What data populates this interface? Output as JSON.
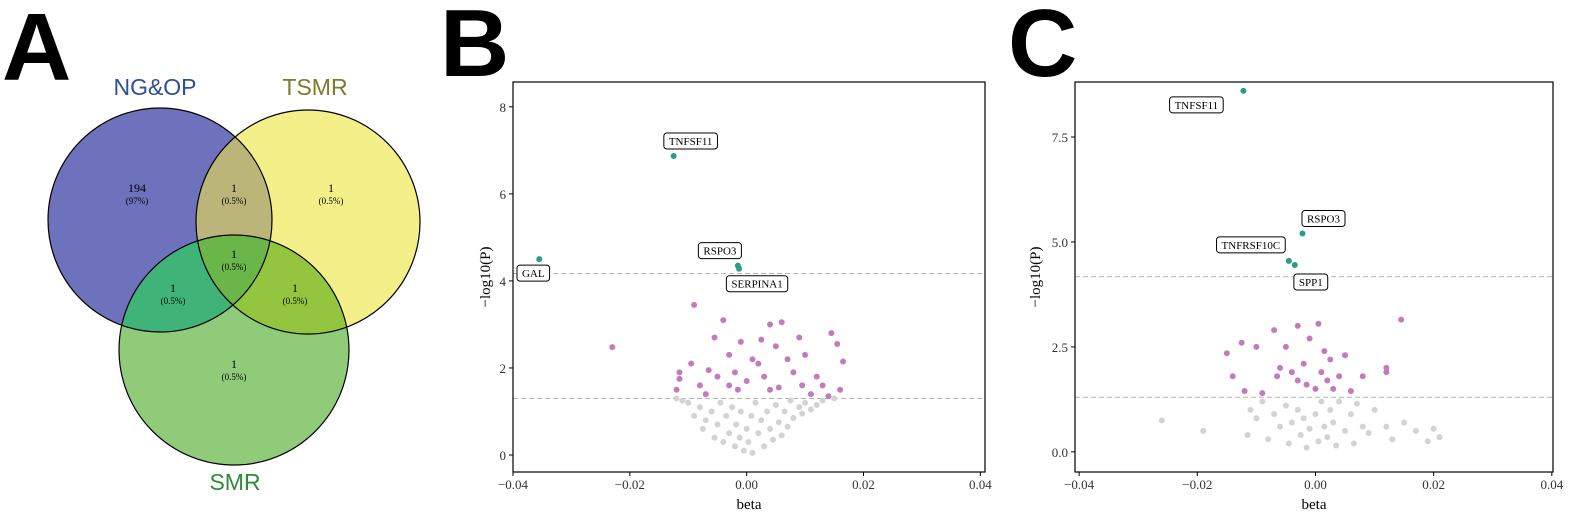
{
  "chart_data": [
    {
      "type": "venn",
      "panel_label": "A",
      "sets": [
        {
          "name": "NG&OP",
          "color": "#6e72bd",
          "label_color": "#2e4f9a"
        },
        {
          "name": "TSMR",
          "color": "#f3f08a",
          "label_color": "#7d7a2a"
        },
        {
          "name": "SMR",
          "color": "#8fcb79",
          "label_color": "#2e8b3a"
        }
      ],
      "regions": [
        {
          "sets": [
            "NG&OP"
          ],
          "count": 194,
          "share": "(97%)"
        },
        {
          "sets": [
            "NG&OP",
            "TSMR"
          ],
          "count": 1,
          "share": "(0.5%)",
          "color": "#bcb57a"
        },
        {
          "sets": [
            "TSMR"
          ],
          "count": 1,
          "share": "(0.5%)"
        },
        {
          "sets": [
            "NG&OP",
            "TSMR",
            "SMR"
          ],
          "count": 1,
          "share": "(0.5%)",
          "color": "#6ab649"
        },
        {
          "sets": [
            "NG&OP",
            "SMR"
          ],
          "count": 1,
          "share": "(0.5%)",
          "color": "#3fb378"
        },
        {
          "sets": [
            "TSMR",
            "SMR"
          ],
          "count": 1,
          "share": "(0.5%)",
          "color": "#93c53e"
        },
        {
          "sets": [
            "SMR"
          ],
          "count": 1,
          "share": "(0.5%)"
        }
      ]
    },
    {
      "type": "scatter",
      "panel_label": "B",
      "x_label": "beta",
      "y_label": "−log10(P)",
      "xlim": [
        -0.04,
        0.0408
      ],
      "ylim": [
        -0.39,
        8.57
      ],
      "xticks": [
        {
          "value": -0.04,
          "label": "−0.04"
        },
        {
          "value": -0.02,
          "label": "−0.02"
        },
        {
          "value": 0,
          "label": "0.00"
        },
        {
          "value": 0.02,
          "label": "0.02"
        },
        {
          "value": 0.04,
          "label": "0.04"
        }
      ],
      "yticks": [
        0,
        2,
        4,
        6,
        8
      ],
      "thresholds": [
        4.17,
        1.3
      ],
      "series": [
        {
          "color": "#d3d3d3",
          "x": [
            -0.01,
            -0.009,
            -0.008,
            -0.0075,
            -0.007,
            -0.006,
            -0.0055,
            -0.005,
            -0.0045,
            -0.004,
            -0.0035,
            -0.003,
            -0.0025,
            -0.002,
            -0.0018,
            -0.0012,
            -0.001,
            -0.0005,
            0,
            0.0003,
            0.0008,
            0.001,
            0.0015,
            0.002,
            0.0025,
            0.003,
            0.0035,
            0.004,
            0.0045,
            0.005,
            0.0055,
            0.006,
            0.0065,
            0.007,
            0.0075,
            0.008,
            0.009,
            0.0095,
            0.01,
            0.011,
            0.012,
            0.013,
            0.015,
            -0.011,
            -0.012
          ],
          "values": [
            1.2,
            0.9,
            1.1,
            0.6,
            0.8,
            1.0,
            0.4,
            0.7,
            1.2,
            0.3,
            0.9,
            0.5,
            1.1,
            0.2,
            0.7,
            0.4,
            1.0,
            0.1,
            0.6,
            0.3,
            0.9,
            0.05,
            1.2,
            0.5,
            0.8,
            0.2,
            1.0,
            0.6,
            0.35,
            1.15,
            0.75,
            0.45,
            1.0,
            0.65,
            1.25,
            0.85,
            1.1,
            0.95,
            1.2,
            1.05,
            1.15,
            1.25,
            1.3,
            1.25,
            1.3
          ]
        },
        {
          "color": "#c37bbf",
          "x": [
            -0.023,
            -0.0115,
            -0.0115,
            -0.009,
            -0.0095,
            -0.008,
            -0.007,
            -0.0055,
            -0.005,
            -0.004,
            -0.003,
            -0.003,
            -0.002,
            -0.0015,
            -0.001,
            0,
            0.001,
            0.002,
            0.003,
            0.004,
            0.004,
            0.005,
            0.006,
            0.007,
            0.008,
            0.009,
            0.0095,
            0.01,
            0.011,
            0.012,
            0.013,
            0.014,
            0.0145,
            0.0155,
            0.016,
            0.0165,
            -0.012,
            -0.0065,
            0.0025,
            0.0055
          ],
          "values": [
            2.48,
            1.9,
            1.75,
            3.45,
            2.1,
            1.6,
            1.4,
            2.7,
            1.8,
            3.1,
            2.3,
            1.6,
            1.9,
            1.5,
            2.6,
            1.7,
            2.2,
            2.1,
            1.8,
            3.0,
            1.5,
            2.5,
            3.05,
            2.2,
            1.9,
            2.7,
            1.6,
            2.3,
            1.4,
            1.8,
            1.6,
            1.35,
            2.8,
            2.55,
            1.5,
            2.15,
            1.5,
            1.95,
            2.65,
            1.55
          ]
        },
        {
          "color": "#2a9d8a",
          "x": [
            -0.0355,
            -0.0125,
            -0.0015,
            -0.0013
          ],
          "values": [
            4.5,
            6.87,
            4.35,
            4.28
          ],
          "point_labels": [
            "GAL",
            "TNFSF11",
            "RSPO3",
            "SERPINA1"
          ]
        }
      ]
    },
    {
      "type": "scatter",
      "panel_label": "C",
      "x_label": "beta",
      "y_label": "−log10(P)",
      "xlim": [
        -0.0407,
        0.0402
      ],
      "ylim": [
        -0.48,
        8.81
      ],
      "xticks": [
        {
          "value": -0.04,
          "label": "−0.04"
        },
        {
          "value": -0.02,
          "label": "−0.02"
        },
        {
          "value": 0,
          "label": "0.00"
        },
        {
          "value": 0.02,
          "label": "0.02"
        },
        {
          "value": 0.04,
          "label": "0.04"
        }
      ],
      "yticks": [
        {
          "value": 0,
          "label": "0.0"
        },
        2.5,
        {
          "value": 5,
          "label": "5.0"
        },
        7.5
      ],
      "thresholds": [
        4.17,
        1.3
      ],
      "series": [
        {
          "color": "#d3d3d3",
          "x": [
            -0.026,
            -0.019,
            -0.011,
            -0.0115,
            -0.01,
            -0.009,
            -0.008,
            -0.007,
            -0.006,
            -0.005,
            -0.0045,
            -0.004,
            -0.003,
            -0.0025,
            -0.002,
            -0.0015,
            -0.001,
            0,
            0.0005,
            0.001,
            0.0015,
            0.002,
            0.0025,
            0.003,
            0.0035,
            0.004,
            0.005,
            0.006,
            0.0065,
            0.007,
            0.008,
            0.009,
            0.01,
            0.012,
            0.013,
            0.015,
            0.017,
            0.02,
            0.021,
            0.019
          ],
          "values": [
            0.75,
            0.5,
            1.0,
            0.4,
            0.8,
            1.2,
            0.3,
            0.9,
            0.6,
            1.1,
            0.2,
            0.7,
            1.0,
            0.4,
            0.8,
            0.1,
            0.55,
            0.9,
            0.25,
            1.2,
            0.6,
            0.35,
            1.0,
            0.7,
            0.15,
            1.2,
            0.5,
            0.9,
            0.2,
            1.15,
            0.6,
            0.45,
            1.0,
            0.6,
            0.3,
            0.7,
            0.5,
            0.55,
            0.35,
            0.25
          ]
        },
        {
          "color": "#c37bbf",
          "x": [
            -0.015,
            -0.014,
            -0.0125,
            -0.01,
            -0.009,
            -0.007,
            -0.0065,
            -0.006,
            -0.005,
            -0.004,
            -0.003,
            -0.003,
            -0.002,
            -0.0015,
            -0.001,
            0,
            0.0005,
            0.001,
            0.0015,
            0.002,
            0.0025,
            0.003,
            0.004,
            0.005,
            0.006,
            0.008,
            0.012,
            0.012,
            0.0145,
            -0.012
          ],
          "values": [
            2.35,
            1.8,
            2.6,
            2.5,
            1.4,
            2.9,
            1.8,
            2.0,
            2.5,
            1.9,
            1.7,
            3.0,
            2.1,
            1.6,
            2.7,
            1.5,
            3.05,
            1.9,
            2.4,
            1.7,
            2.2,
            1.5,
            1.8,
            2.3,
            1.45,
            1.8,
            1.9,
            2.0,
            3.15,
            1.45
          ]
        },
        {
          "color": "#2a9d8a",
          "x": [
            -0.0122,
            -0.0022,
            -0.0045,
            -0.0035
          ],
          "values": [
            8.6,
            5.2,
            4.55,
            4.45
          ],
          "point_labels": [
            "TNFSF11",
            "RSPO3",
            "TNFRSF10C",
            "SPP1"
          ]
        }
      ]
    }
  ]
}
